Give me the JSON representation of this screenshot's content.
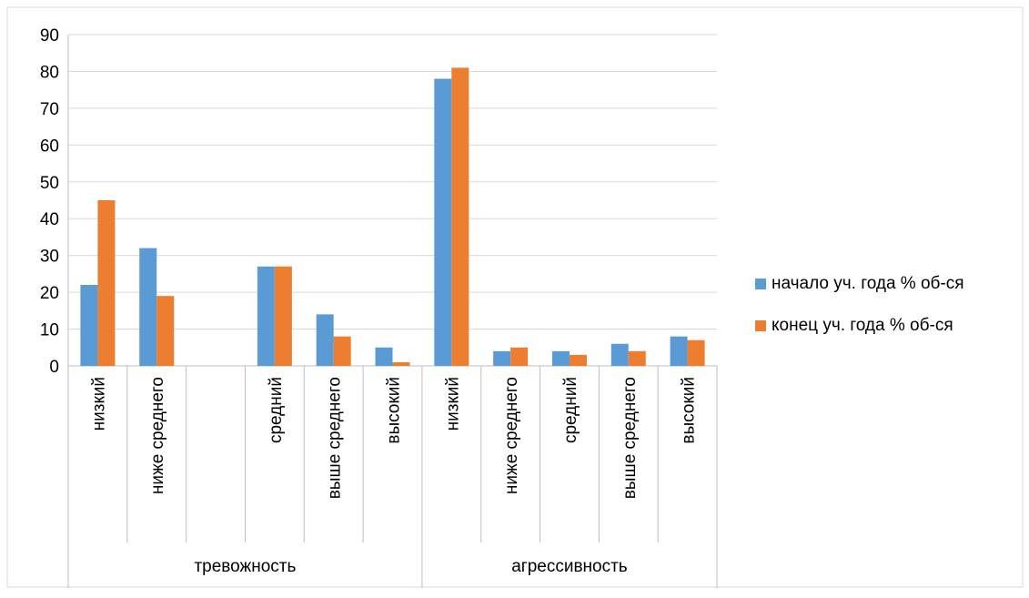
{
  "chart_data": {
    "type": "bar",
    "title": "",
    "xlabel": "",
    "ylabel": "",
    "ylim": [
      0,
      90
    ],
    "yticks": [
      0,
      10,
      20,
      30,
      40,
      50,
      60,
      70,
      80,
      90
    ],
    "grid": true,
    "legend_placement": "right",
    "categories": [
      "низкий",
      "ниже среднего",
      "",
      "средний",
      "выше среднего",
      "высокий",
      "низкий",
      "ниже среднего",
      "средний",
      "выше среднего",
      "высокий"
    ],
    "groups": [
      {
        "label": "тревожность",
        "span": 6
      },
      {
        "label": "агрессивность",
        "span": 5
      }
    ],
    "series": [
      {
        "name": "начало уч. года % об-ся",
        "color": "#5B9BD5",
        "values": [
          22,
          32,
          null,
          27,
          14,
          5,
          78,
          4,
          4,
          6,
          8
        ]
      },
      {
        "name": "конец уч. года % об-ся",
        "color": "#ED7D31",
        "values": [
          45,
          19,
          null,
          27,
          8,
          1,
          81,
          5,
          3,
          4,
          7
        ]
      }
    ]
  }
}
